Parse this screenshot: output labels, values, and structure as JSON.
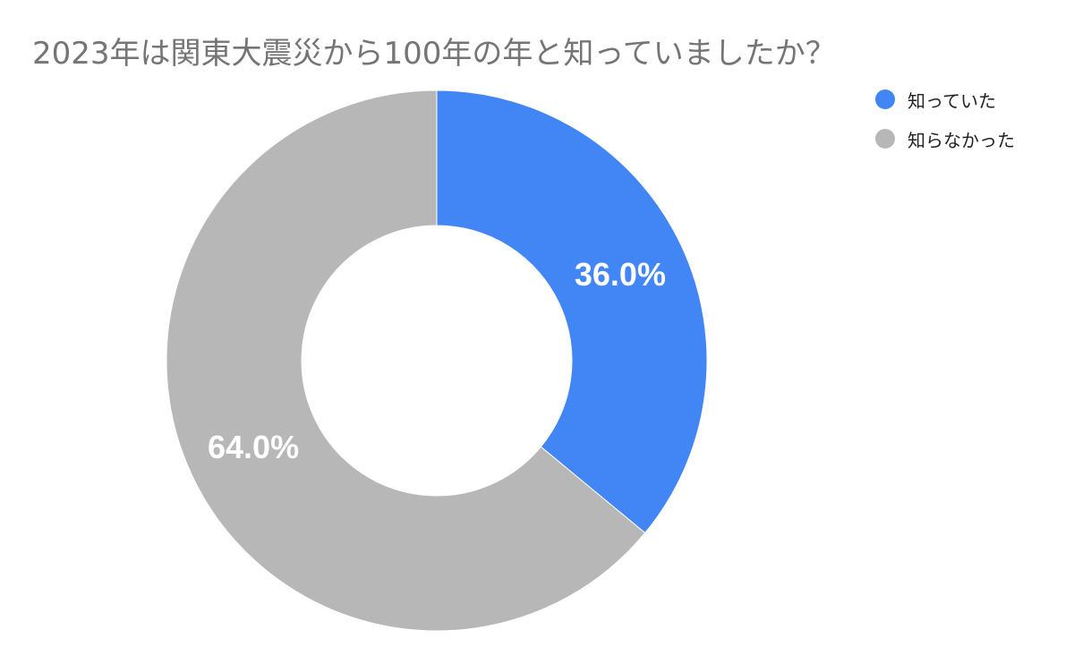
{
  "chart_data": {
    "type": "pie",
    "variant": "donut",
    "title": "2023年は関東大震災から100年の年と知っていましたか？",
    "legend_position": "top-right",
    "slices": [
      {
        "label": "知っていた",
        "value": 36.0,
        "display": "36.0%",
        "color": "#4285f4"
      },
      {
        "label": "知らなかった",
        "value": 64.0,
        "display": "64.0%",
        "color": "#b7b7b7"
      }
    ]
  }
}
